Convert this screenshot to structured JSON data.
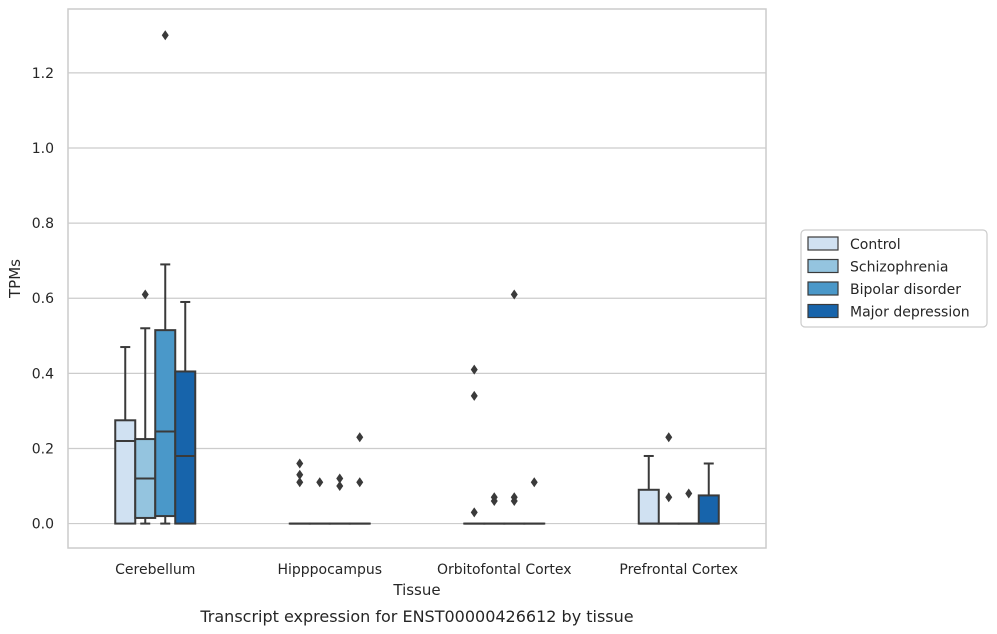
{
  "chart_data": {
    "type": "box",
    "xlabel": "Tissue",
    "ylabel": "TPMs",
    "caption": "Transcript expression for ENST00000426612 by tissue",
    "ylim": [
      -0.065,
      1.37
    ],
    "yticks": [
      0.0,
      0.2,
      0.4,
      0.6,
      0.8,
      1.0,
      1.2
    ],
    "ytick_labels": [
      "0.0",
      "0.2",
      "0.4",
      "0.6",
      "0.8",
      "1.0",
      "1.2"
    ],
    "grid": "horizontal",
    "legend_position": "right",
    "categories": [
      "Cerebellum",
      "Hipppocampus",
      "Orbitofontal Cortex",
      "Prefrontal Cortex"
    ],
    "series": [
      {
        "name": "Control",
        "color": "#d0e1f2",
        "boxes": [
          {
            "q1": 0.0,
            "median": 0.22,
            "q3": 0.275,
            "whisker_low": 0.0,
            "whisker_high": 0.47,
            "outliers": []
          },
          {
            "q1": 0.0,
            "median": 0.0,
            "q3": 0.0,
            "whisker_low": 0.0,
            "whisker_high": 0.0,
            "outliers": [
              0.16,
              0.13,
              0.11
            ]
          },
          {
            "q1": 0.0,
            "median": 0.0,
            "q3": 0.0,
            "whisker_low": 0.0,
            "whisker_high": 0.0,
            "outliers": [
              0.41,
              0.34,
              0.03
            ]
          },
          {
            "q1": 0.0,
            "median": 0.0,
            "q3": 0.09,
            "whisker_low": 0.0,
            "whisker_high": 0.18,
            "outliers": []
          }
        ]
      },
      {
        "name": "Schizophrenia",
        "color": "#94c4df",
        "boxes": [
          {
            "q1": 0.015,
            "median": 0.12,
            "q3": 0.225,
            "whisker_low": 0.0,
            "whisker_high": 0.52,
            "outliers": [
              0.61
            ]
          },
          {
            "q1": 0.0,
            "median": 0.0,
            "q3": 0.0,
            "whisker_low": 0.0,
            "whisker_high": 0.0,
            "outliers": [
              0.11
            ]
          },
          {
            "q1": 0.0,
            "median": 0.0,
            "q3": 0.0,
            "whisker_low": 0.0,
            "whisker_high": 0.0,
            "outliers": [
              0.07,
              0.06
            ]
          },
          {
            "q1": 0.0,
            "median": 0.0,
            "q3": 0.0,
            "whisker_low": 0.0,
            "whisker_high": 0.0,
            "outliers": [
              0.23,
              0.07
            ]
          }
        ]
      },
      {
        "name": "Bipolar disorder",
        "color": "#4a98c9",
        "boxes": [
          {
            "q1": 0.02,
            "median": 0.245,
            "q3": 0.515,
            "whisker_low": 0.0,
            "whisker_high": 0.69,
            "outliers": [
              1.3
            ]
          },
          {
            "q1": 0.0,
            "median": 0.0,
            "q3": 0.0,
            "whisker_low": 0.0,
            "whisker_high": 0.0,
            "outliers": [
              0.12,
              0.1
            ]
          },
          {
            "q1": 0.0,
            "median": 0.0,
            "q3": 0.0,
            "whisker_low": 0.0,
            "whisker_high": 0.0,
            "outliers": [
              0.61,
              0.07,
              0.06
            ]
          },
          {
            "q1": 0.0,
            "median": 0.0,
            "q3": 0.0,
            "whisker_low": 0.0,
            "whisker_high": 0.0,
            "outliers": [
              0.08
            ]
          }
        ]
      },
      {
        "name": "Major depression",
        "color": "#1764ab",
        "boxes": [
          {
            "q1": 0.0,
            "median": 0.18,
            "q3": 0.405,
            "whisker_low": 0.0,
            "whisker_high": 0.59,
            "outliers": []
          },
          {
            "q1": 0.0,
            "median": 0.0,
            "q3": 0.0,
            "whisker_low": 0.0,
            "whisker_high": 0.0,
            "outliers": [
              0.23,
              0.11
            ]
          },
          {
            "q1": 0.0,
            "median": 0.0,
            "q3": 0.0,
            "whisker_low": 0.0,
            "whisker_high": 0.0,
            "outliers": [
              0.11
            ]
          },
          {
            "q1": 0.0,
            "median": 0.0,
            "q3": 0.075,
            "whisker_low": 0.0,
            "whisker_high": 0.16,
            "outliers": []
          }
        ]
      }
    ]
  }
}
